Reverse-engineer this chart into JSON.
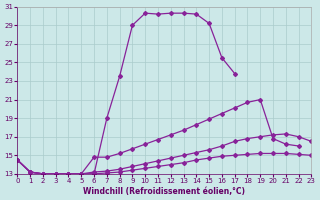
{
  "xlabel": "Windchill (Refroidissement éolien,°C)",
  "bg_color": "#cce8e8",
  "grid_color": "#aacccc",
  "line_color": "#882299",
  "ylim": [
    13,
    31
  ],
  "yticks": [
    13,
    15,
    17,
    19,
    21,
    23,
    25,
    27,
    29,
    31
  ],
  "xlim": [
    0,
    23
  ],
  "xticks": [
    0,
    1,
    2,
    3,
    4,
    5,
    6,
    7,
    8,
    9,
    10,
    11,
    12,
    13,
    14,
    15,
    16,
    17,
    18,
    19,
    20,
    21,
    22,
    23
  ],
  "curve1_x": [
    0,
    1,
    2,
    3,
    4,
    5,
    6,
    7,
    8,
    9,
    10,
    11,
    12,
    13,
    14,
    15,
    16,
    17
  ],
  "curve1_y": [
    14.5,
    13.2,
    13.0,
    13.0,
    13.0,
    13.0,
    13.0,
    19.0,
    23.5,
    29.0,
    30.3,
    30.2,
    30.3,
    30.3,
    30.2,
    29.2,
    25.5,
    23.8
  ],
  "curve2_x": [
    0,
    1,
    2,
    3,
    4,
    5,
    6,
    7,
    8,
    9,
    10,
    11,
    12,
    13,
    14,
    15,
    16,
    17,
    18,
    19,
    20,
    21,
    22
  ],
  "curve2_y": [
    14.5,
    13.2,
    13.0,
    13.0,
    13.0,
    13.0,
    14.8,
    14.8,
    15.2,
    15.7,
    16.2,
    16.7,
    17.2,
    17.7,
    18.3,
    18.9,
    19.5,
    20.1,
    20.7,
    21.0,
    16.8,
    16.2,
    16.0
  ],
  "curve3_x": [
    0,
    1,
    2,
    3,
    4,
    5,
    6,
    7,
    8,
    9,
    10,
    11,
    12,
    13,
    14,
    15,
    16,
    17,
    18,
    19,
    20,
    21,
    22,
    23
  ],
  "curve3_y": [
    14.5,
    13.2,
    13.0,
    13.0,
    13.0,
    13.0,
    13.2,
    13.3,
    13.5,
    13.8,
    14.1,
    14.4,
    14.7,
    15.0,
    15.3,
    15.6,
    16.0,
    16.5,
    16.8,
    17.0,
    17.2,
    17.3,
    17.0,
    16.5
  ],
  "curve4_x": [
    0,
    1,
    2,
    3,
    4,
    5,
    6,
    7,
    8,
    9,
    10,
    11,
    12,
    13,
    14,
    15,
    16,
    17,
    18,
    19,
    20,
    21,
    22,
    23
  ],
  "curve4_y": [
    14.5,
    13.2,
    13.0,
    13.0,
    13.0,
    13.0,
    13.0,
    13.1,
    13.2,
    13.4,
    13.6,
    13.8,
    14.0,
    14.2,
    14.5,
    14.7,
    14.9,
    15.0,
    15.1,
    15.2,
    15.2,
    15.2,
    15.1,
    15.0
  ]
}
